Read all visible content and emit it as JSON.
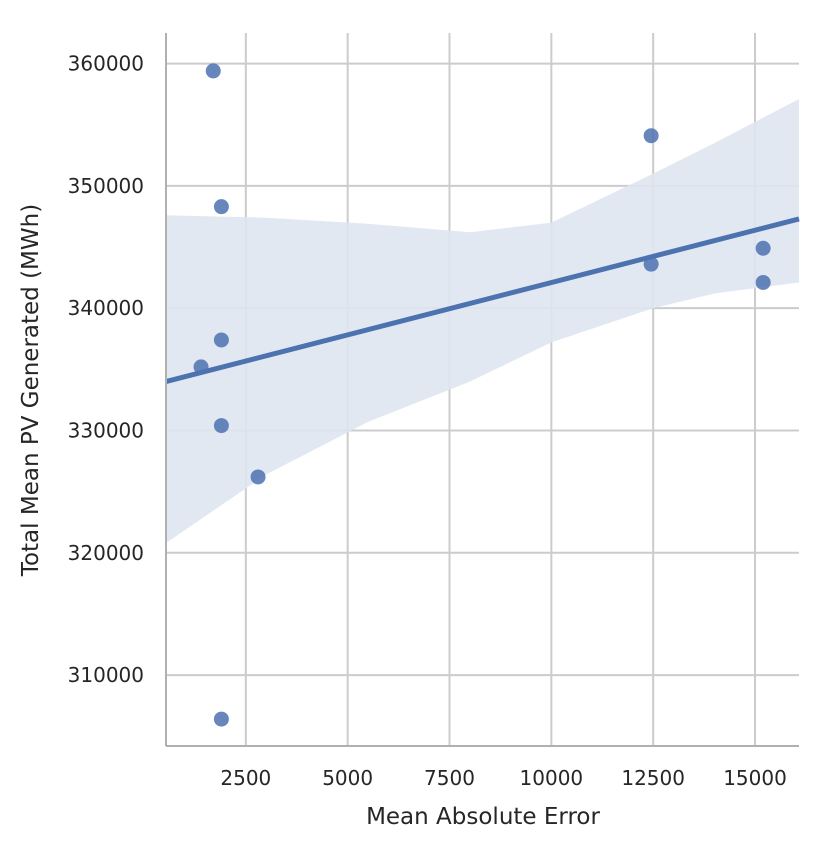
{
  "chart_data": {
    "type": "scatter",
    "xlabel": "Mean Absolute Error",
    "ylabel": "Total Mean PV Generated (MWh)",
    "xlim": [
      540,
      16080
    ],
    "ylim": [
      304200,
      362500
    ],
    "xticks": [
      2500,
      5000,
      7500,
      10000,
      12500,
      15000
    ],
    "yticks": [
      310000,
      320000,
      330000,
      340000,
      350000,
      360000
    ],
    "grid": true,
    "points": [
      {
        "x": 1700,
        "y": 359400
      },
      {
        "x": 1900,
        "y": 348300
      },
      {
        "x": 1900,
        "y": 337400
      },
      {
        "x": 1400,
        "y": 335200
      },
      {
        "x": 1900,
        "y": 330400
      },
      {
        "x": 2800,
        "y": 326200
      },
      {
        "x": 1900,
        "y": 306400
      },
      {
        "x": 12450,
        "y": 354100
      },
      {
        "x": 12450,
        "y": 343600
      },
      {
        "x": 15200,
        "y": 344900
      },
      {
        "x": 15200,
        "y": 342100
      }
    ],
    "regression": {
      "x": [
        540,
        16080
      ],
      "y": [
        334000,
        347300
      ]
    },
    "confidence_band": {
      "x": [
        540,
        3000,
        5500,
        8000,
        10000,
        12500,
        14000,
        16080
      ],
      "upper": [
        347600,
        347400,
        346900,
        346200,
        347000,
        351000,
        353500,
        357100
      ],
      "lower": [
        320800,
        326400,
        330700,
        334000,
        337200,
        340000,
        341200,
        342100
      ]
    },
    "colors": {
      "points": "#4c72b0",
      "line": "#4c72b0",
      "band": "#dfe6f1",
      "grid": "#cccccc",
      "axis": "#b0b0b0"
    }
  }
}
